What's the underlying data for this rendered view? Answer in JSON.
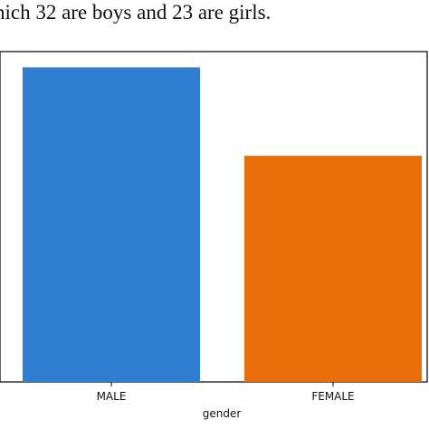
{
  "caption": "hich 32 are boys and 23 are girls.",
  "chart_data": {
    "type": "bar",
    "categories": [
      "MALE",
      "FEMALE"
    ],
    "values": [
      32,
      23
    ],
    "colors": [
      "#2e7fd3",
      "#e96d08"
    ],
    "title": "",
    "xlabel": "gender",
    "ylabel": "",
    "ylim": [
      0,
      33.6
    ],
    "grid": false,
    "legend": "none"
  }
}
